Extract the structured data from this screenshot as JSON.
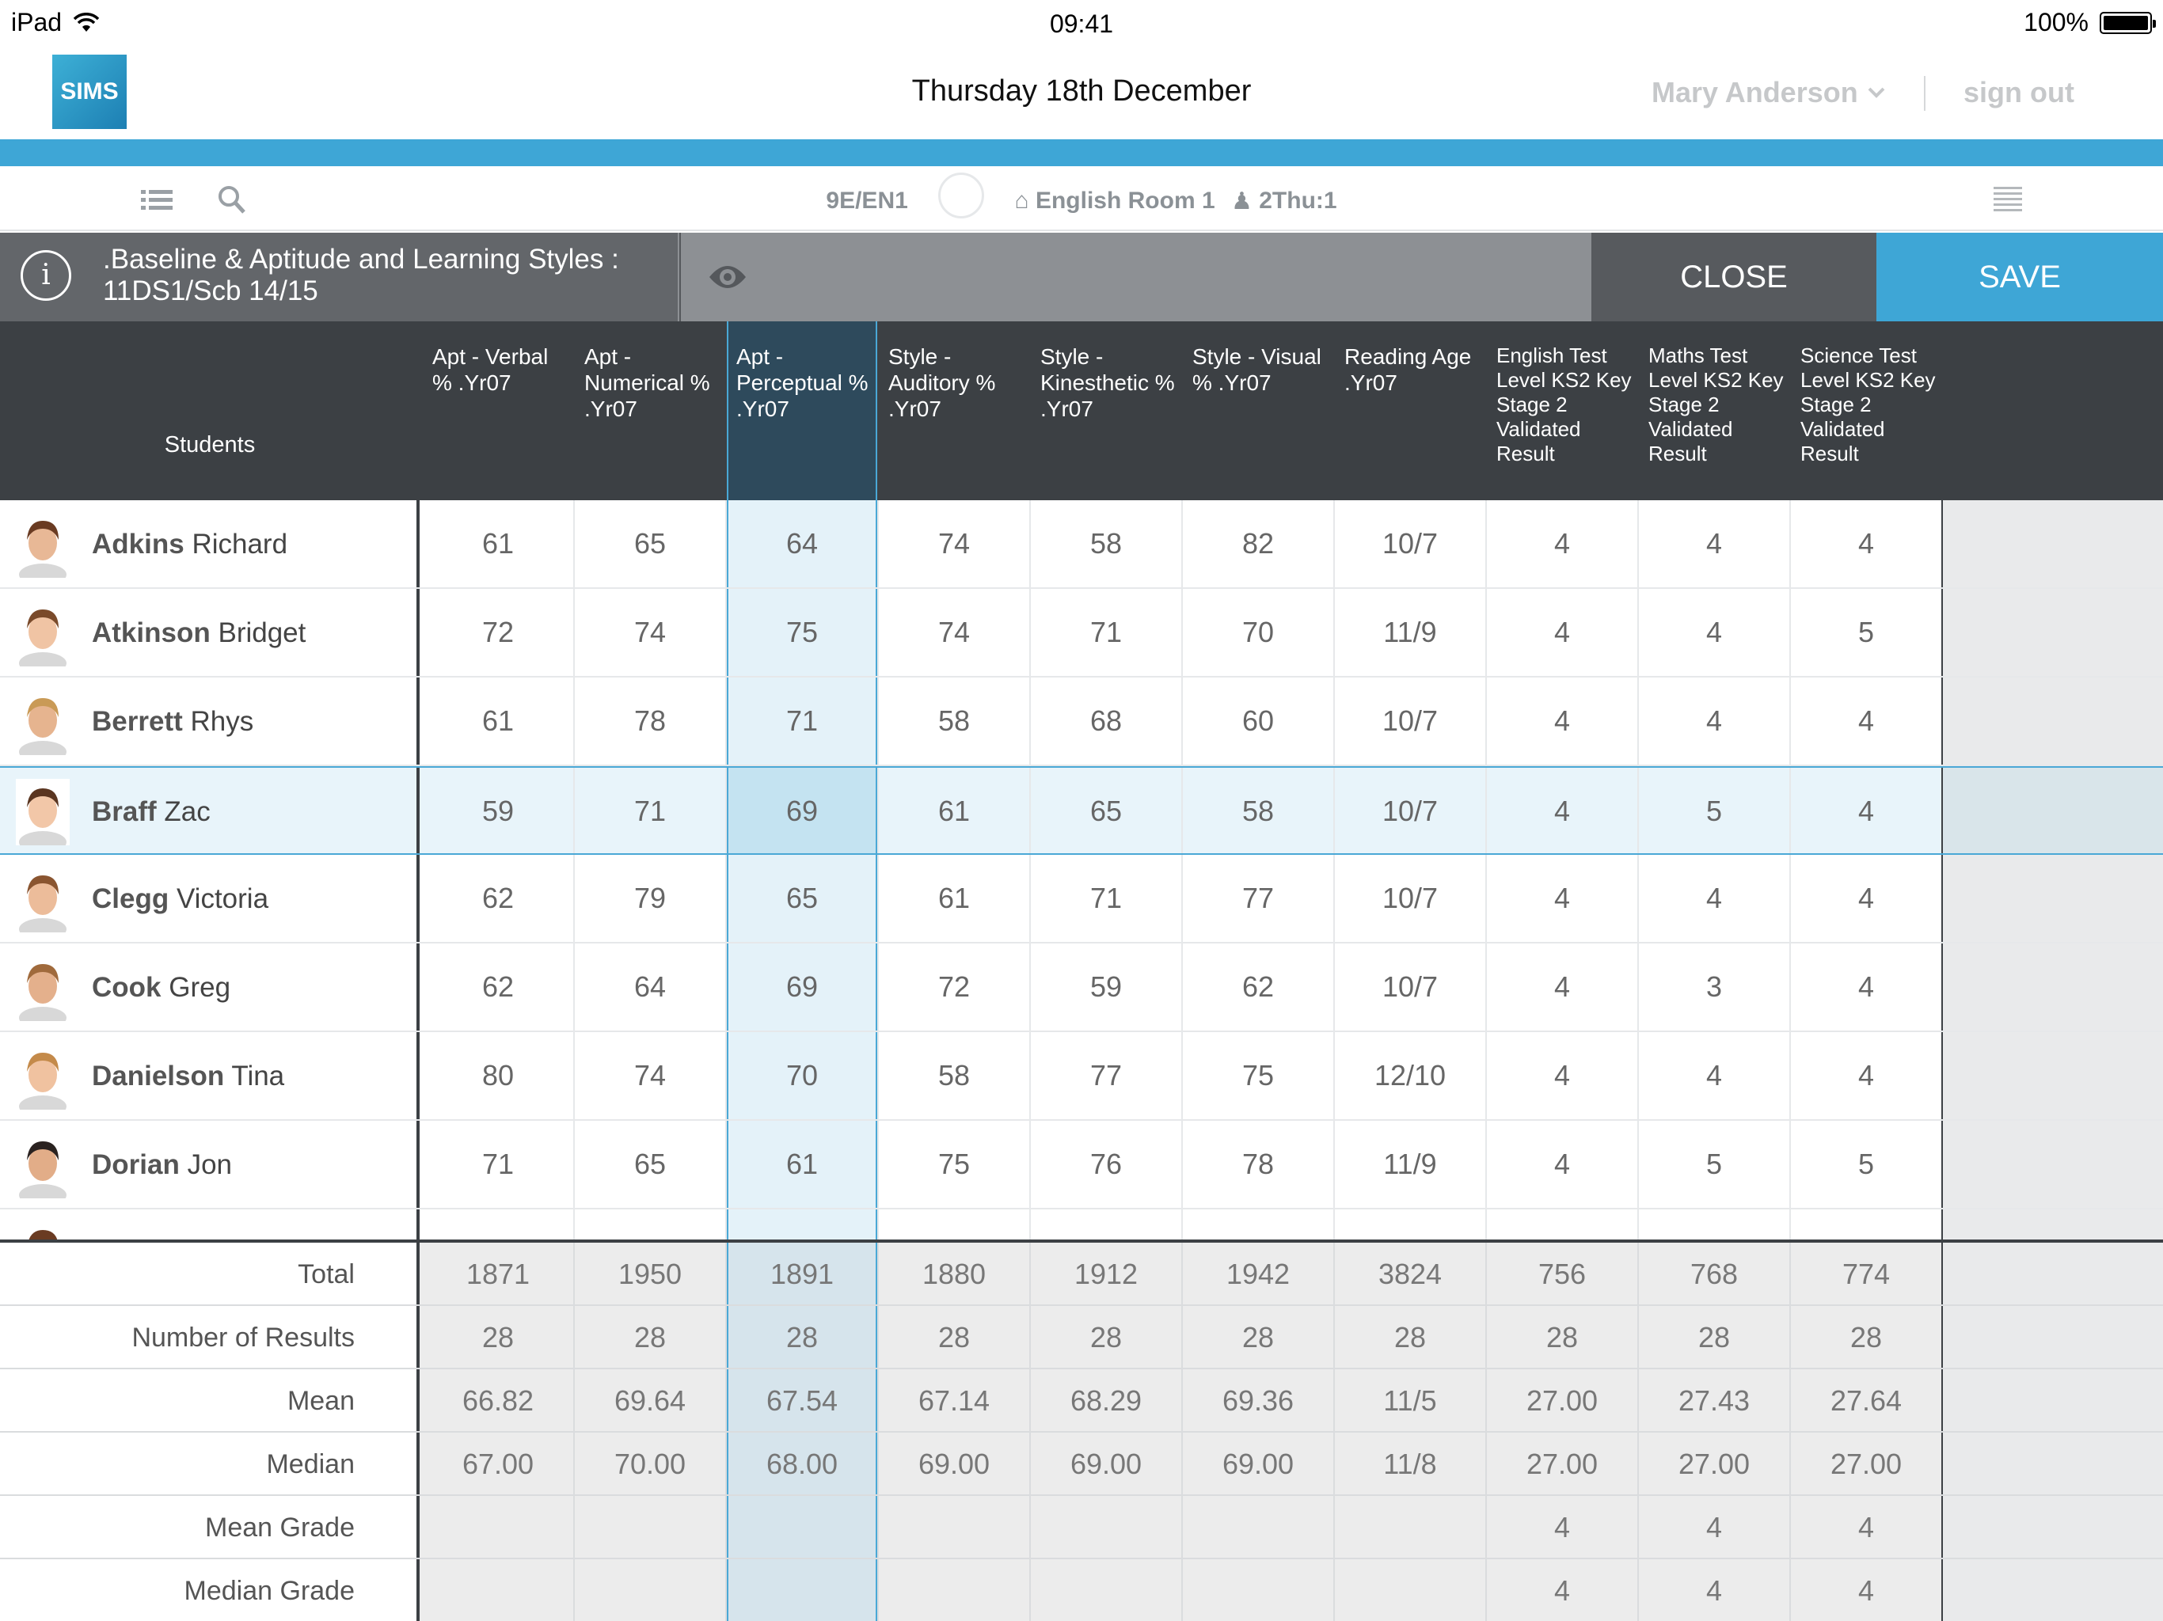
{
  "status_bar": {
    "device": "iPad",
    "time": "09:41",
    "battery": "100%"
  },
  "header": {
    "logo_text": "SIMS",
    "date": "Thursday 18th December",
    "user_name": "Mary Anderson",
    "sign_out": "sign out"
  },
  "toolbar": {
    "class_code": "9E/EN1",
    "room": "English Room 1",
    "period": "2Thu:1"
  },
  "titlebar": {
    "title_line1": ".Baseline & Aptitude and Learning Styles :",
    "title_line2": "11DS1/Scb 14/15",
    "close_label": "CLOSE",
    "save_label": "SAVE"
  },
  "columns": {
    "students": "Students",
    "c0": "Apt - Verbal % .Yr07",
    "c1": "Apt - Numerical % .Yr07",
    "c2": "Apt - Perceptual % .Yr07",
    "c3": "Style - Auditory % .Yr07",
    "c4": "Style - Kinesthetic % .Yr07",
    "c5": "Style - Visual % .Yr07",
    "c6": "Reading Age .Yr07",
    "c7": "English Test Level KS2 Key Stage 2 Validated Result",
    "c8": "Maths Test Level KS2 Key Stage 2 Validated Result",
    "c9": "Science Test Level KS2 Key Stage 2 Validated Result"
  },
  "students": [
    {
      "surname": "Adkins",
      "forename": "Richard",
      "values": [
        "61",
        "65",
        "64",
        "74",
        "58",
        "82",
        "10/7",
        "4",
        "4",
        "4"
      ]
    },
    {
      "surname": "Atkinson",
      "forename": "Bridget",
      "values": [
        "72",
        "74",
        "75",
        "74",
        "71",
        "70",
        "11/9",
        "4",
        "4",
        "5"
      ]
    },
    {
      "surname": "Berrett",
      "forename": "Rhys",
      "values": [
        "61",
        "78",
        "71",
        "58",
        "68",
        "60",
        "10/7",
        "4",
        "4",
        "4"
      ]
    },
    {
      "surname": "Braff",
      "forename": "Zac",
      "values": [
        "59",
        "71",
        "69",
        "61",
        "65",
        "58",
        "10/7",
        "4",
        "5",
        "4"
      ]
    },
    {
      "surname": "Clegg",
      "forename": "Victoria",
      "values": [
        "62",
        "79",
        "65",
        "61",
        "71",
        "77",
        "10/7",
        "4",
        "4",
        "4"
      ]
    },
    {
      "surname": "Cook",
      "forename": "Greg",
      "values": [
        "62",
        "64",
        "69",
        "72",
        "59",
        "62",
        "10/7",
        "4",
        "3",
        "4"
      ]
    },
    {
      "surname": "Danielson",
      "forename": "Tina",
      "values": [
        "80",
        "74",
        "70",
        "58",
        "77",
        "75",
        "12/10",
        "4",
        "4",
        "4"
      ]
    },
    {
      "surname": "Dorian",
      "forename": "Jon",
      "values": [
        "71",
        "65",
        "61",
        "75",
        "76",
        "78",
        "11/9",
        "4",
        "5",
        "5"
      ]
    }
  ],
  "summary": [
    {
      "label": "Total",
      "values": [
        "1871",
        "1950",
        "1891",
        "1880",
        "1912",
        "1942",
        "3824",
        "756",
        "768",
        "774"
      ]
    },
    {
      "label": "Number of Results",
      "values": [
        "28",
        "28",
        "28",
        "28",
        "28",
        "28",
        "28",
        "28",
        "28",
        "28"
      ]
    },
    {
      "label": "Mean",
      "values": [
        "66.82",
        "69.64",
        "67.54",
        "67.14",
        "68.29",
        "69.36",
        "11/5",
        "27.00",
        "27.43",
        "27.64"
      ]
    },
    {
      "label": "Median",
      "values": [
        "67.00",
        "70.00",
        "68.00",
        "69.00",
        "69.00",
        "69.00",
        "11/8",
        "27.00",
        "27.00",
        "27.00"
      ]
    },
    {
      "label": "Mean Grade",
      "values": [
        "",
        "",
        "",
        "",
        "",
        "",
        "",
        "4",
        "4",
        "4"
      ]
    },
    {
      "label": "Median Grade",
      "values": [
        "",
        "",
        "",
        "",
        "",
        "",
        "",
        "4",
        "4",
        "4"
      ]
    }
  ],
  "selected_student": "Braff",
  "colors": {
    "accent": "#3ea6d6",
    "header_dark": "#3c4044",
    "titlebar_grey": "#8d9094",
    "close_bg": "#575a5e"
  }
}
